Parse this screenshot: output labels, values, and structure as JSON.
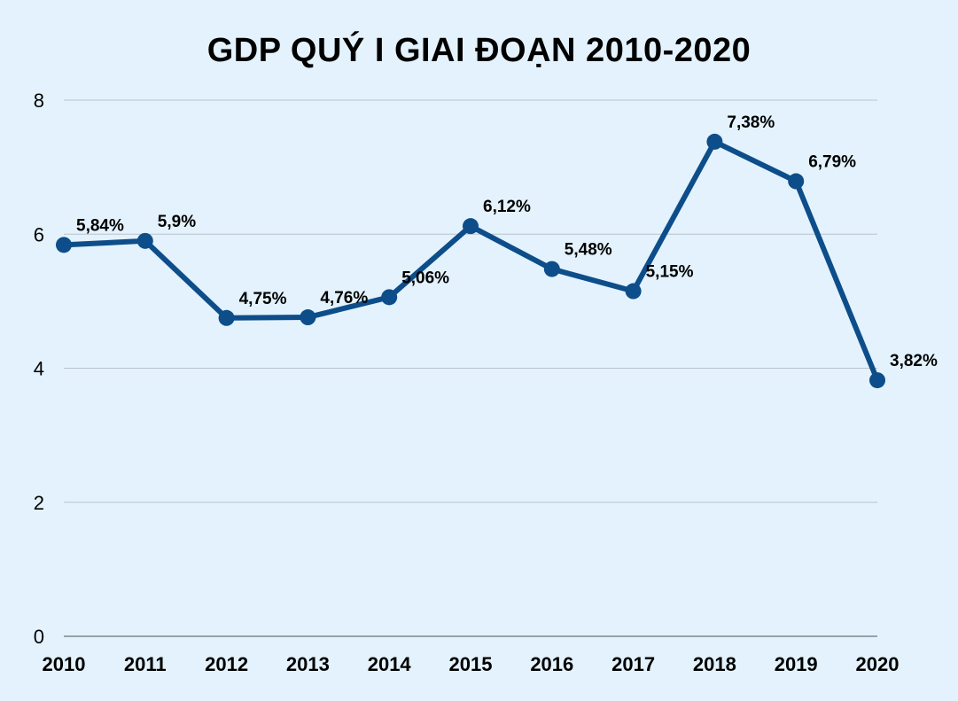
{
  "chart_data": {
    "type": "line",
    "title": "GDP QUÝ I GIAI ĐOẠN 2010-2020",
    "categories": [
      "2010",
      "2011",
      "2012",
      "2013",
      "2014",
      "2015",
      "2016",
      "2017",
      "2018",
      "2019",
      "2020"
    ],
    "series": [
      {
        "values": [
          5.84,
          5.9,
          4.75,
          4.76,
          5.06,
          6.12,
          5.48,
          5.15,
          7.38,
          6.79,
          3.82
        ],
        "labels": [
          "5,84%",
          "5,9%",
          "4,75%",
          "4,76%",
          "5,06%",
          "6,12%",
          "5,48%",
          "5,15%",
          "7,38%",
          "6,79%",
          "3,82%"
        ]
      }
    ],
    "ylim": [
      0,
      8
    ],
    "yticks": [
      "0",
      "2",
      "4",
      "6",
      "8"
    ],
    "grid": true,
    "legend": "none",
    "colors": {
      "line": "#0d4d8a",
      "grid": "#b9c3cc",
      "axis": "#7f8890",
      "background": "#e3f2fc"
    }
  }
}
